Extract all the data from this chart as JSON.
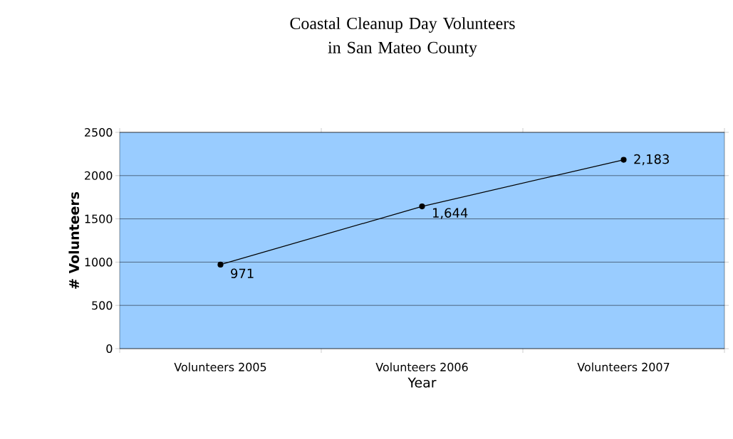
{
  "chart_data": {
    "type": "line",
    "title": "Coastal Cleanup Day Volunteers\nin San Mateo County",
    "xlabel": "Year",
    "ylabel": "# Volunteers",
    "categories": [
      "Volunteers 2005",
      "Volunteers 2006",
      "Volunteers 2007"
    ],
    "series": [
      {
        "color": "#000000",
        "values": [
          971,
          1644,
          2183
        ],
        "value_labels": [
          "971",
          "1,644",
          "2,183"
        ]
      }
    ],
    "ylim": [
      0,
      2500
    ],
    "yticks": [
      0,
      500,
      1000,
      1500,
      2000,
      2500
    ],
    "grid": "y",
    "marker": "circle",
    "line_style": "solid"
  }
}
